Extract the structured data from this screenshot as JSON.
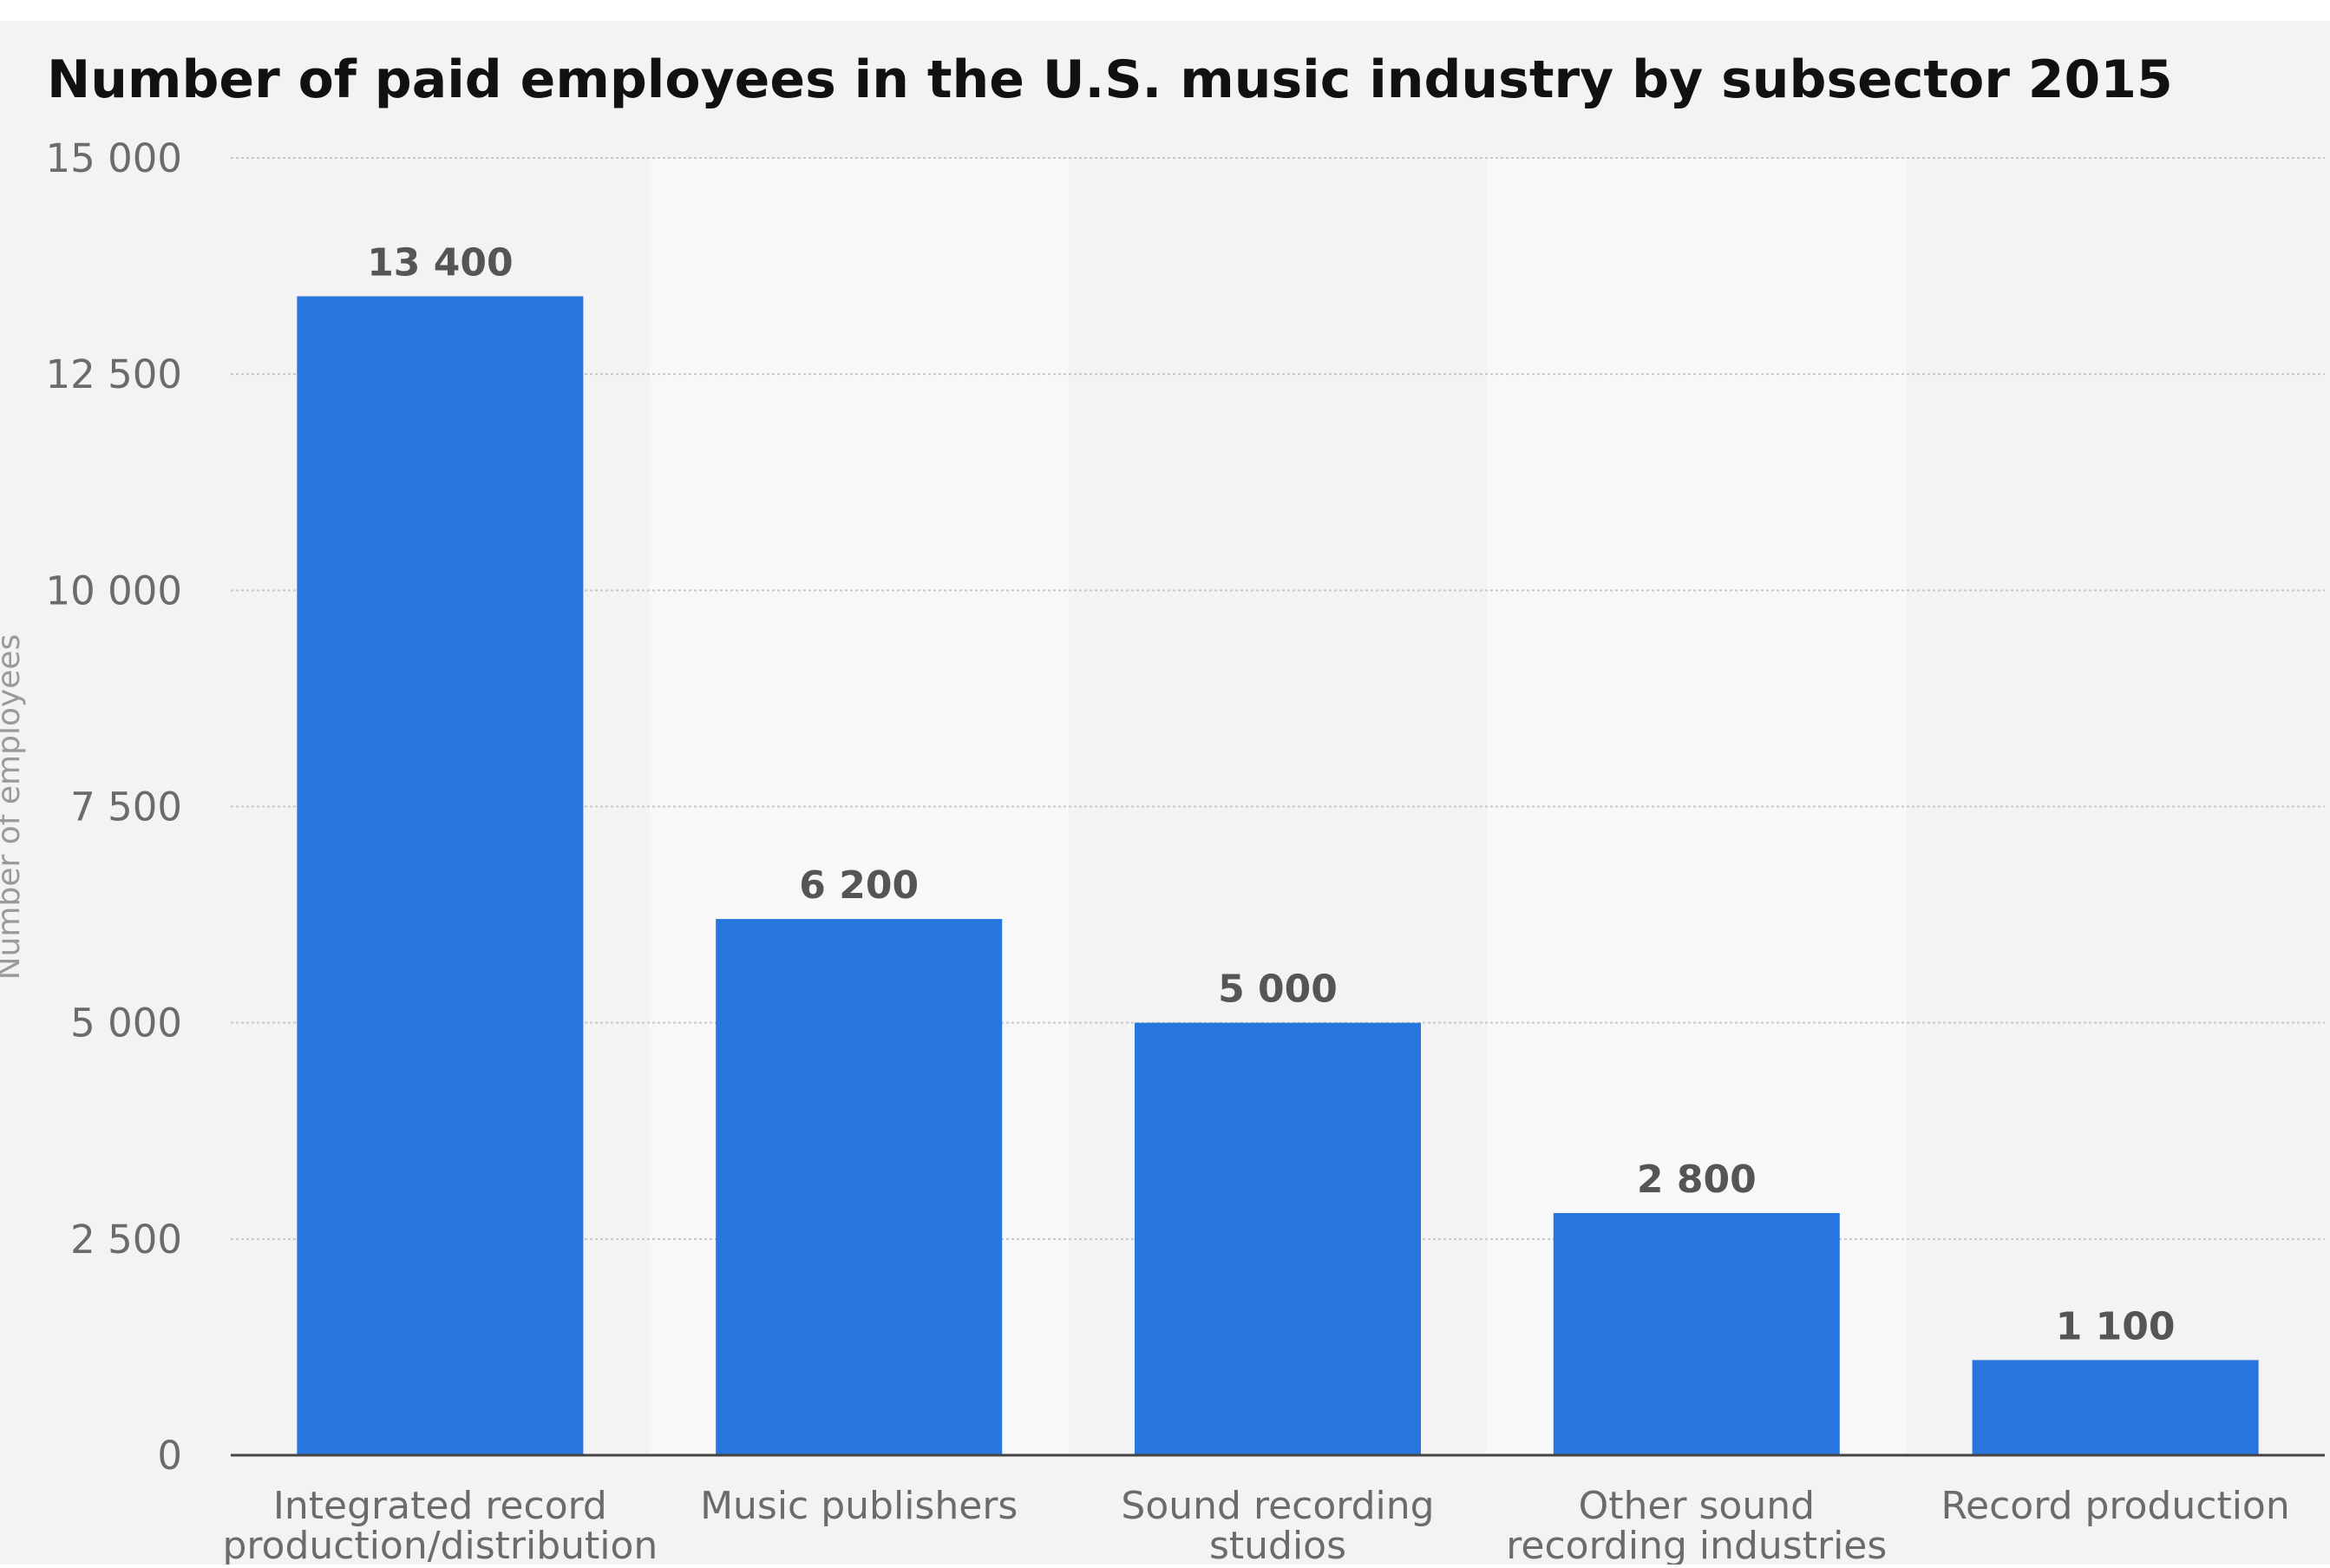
{
  "chart_data": {
    "type": "bar",
    "title": "Number of paid employees in the U.S. music industry by subsector 2015",
    "xlabel": "",
    "ylabel": "Number of employees",
    "ylim": [
      0,
      15000
    ],
    "yticks": [
      0,
      2500,
      5000,
      7500,
      10000,
      12500,
      15000
    ],
    "ytick_labels": [
      "0",
      "2 500",
      "5 000",
      "7 500",
      "10 000",
      "12 500",
      "15 000"
    ],
    "categories": [
      [
        "Integrated record",
        "production/distribution"
      ],
      [
        "Music publishers"
      ],
      [
        "Sound recording",
        "studios"
      ],
      [
        "Other sound",
        "recording industries"
      ],
      [
        "Record production"
      ]
    ],
    "values": [
      13400,
      6200,
      5000,
      2800,
      1100
    ],
    "value_labels": [
      "13 400",
      "6 200",
      "5 000",
      "2 800",
      "1 100"
    ],
    "grid": true,
    "colors": {
      "bar": "#2775dd",
      "title": "#111111",
      "tick_text": "#6b6b6b",
      "value_label": "#555555",
      "band_dark": "#f3f3f3",
      "band_light": "#f8f8f8",
      "grid": "#c8c8c8",
      "axis": "#444444"
    }
  }
}
